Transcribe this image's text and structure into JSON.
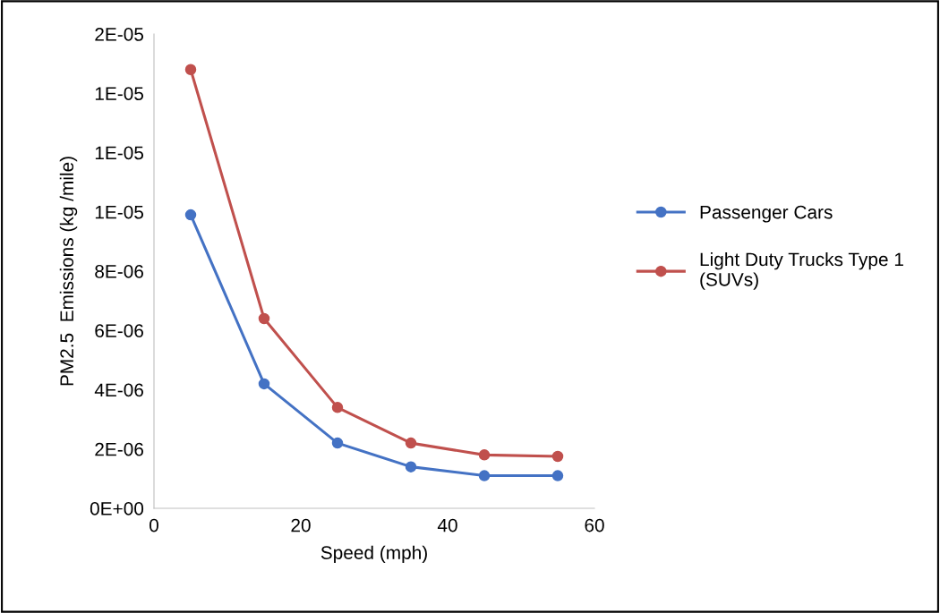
{
  "chart_data": {
    "type": "line",
    "xlabel": "Speed (mph)",
    "ylabel": "PM2.5  Emissions (kg /mile)",
    "x": [
      5,
      15,
      25,
      35,
      45,
      55
    ],
    "series": [
      {
        "name": "Passenger Cars",
        "color": "#4472c4",
        "values": [
          9.9e-06,
          4.2e-06,
          2.2e-06,
          1.4e-06,
          1.1e-06,
          1.1e-06
        ]
      },
      {
        "name": "Light Duty Trucks Type 1 (SUVs)",
        "color": "#c0504d",
        "values": [
          1.48e-05,
          6.4e-06,
          3.4e-06,
          2.2e-06,
          1.8e-06,
          1.75e-06
        ]
      }
    ],
    "xlim": [
      0,
      60
    ],
    "xticks": [
      0,
      20,
      40,
      60
    ],
    "ylim": [
      0,
      1.6e-05
    ],
    "yticks": [
      {
        "value": 0,
        "label": "0E+00"
      },
      {
        "value": 2e-06,
        "label": "2E-06"
      },
      {
        "value": 4e-06,
        "label": "4E-06"
      },
      {
        "value": 6e-06,
        "label": "6E-06"
      },
      {
        "value": 8e-06,
        "label": "8E-06"
      },
      {
        "value": 1e-05,
        "label": "1E-05"
      },
      {
        "value": 1.2e-05,
        "label": "1E-05"
      },
      {
        "value": 1.4e-05,
        "label": "1E-05"
      },
      {
        "value": 1.6e-05,
        "label": "2E-05"
      }
    ],
    "grid": false,
    "legend": "right",
    "marker": "circle",
    "line_style": "solid"
  }
}
